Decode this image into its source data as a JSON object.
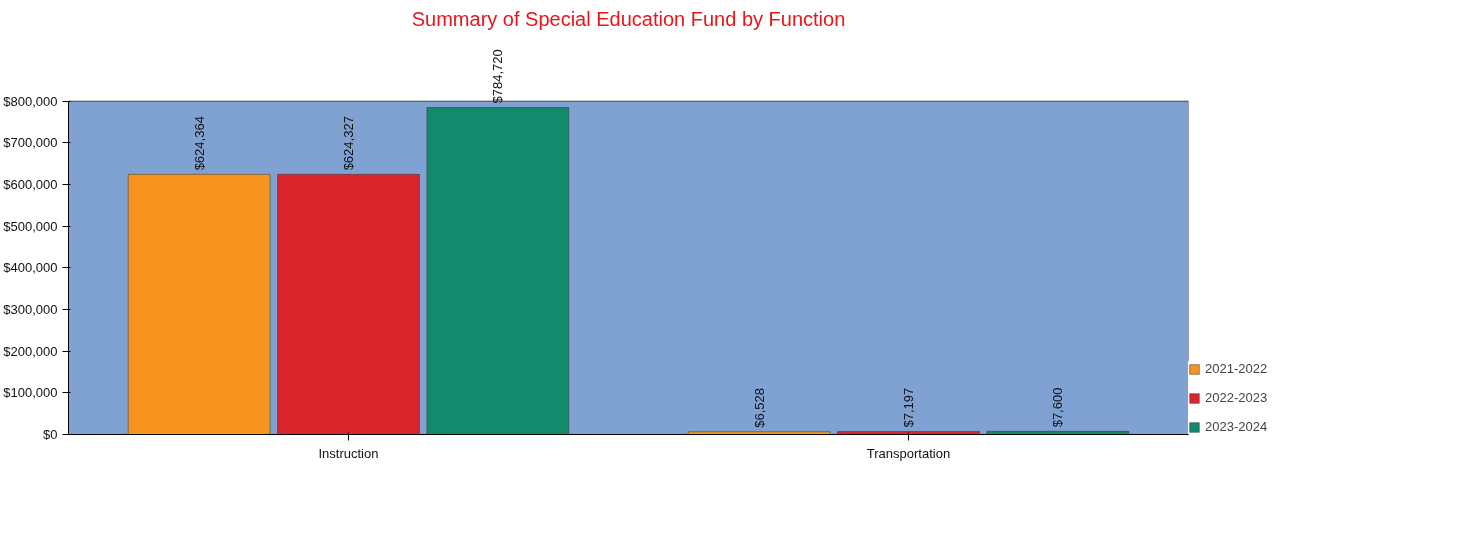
{
  "chart_data": {
    "type": "bar",
    "title": "Summary of Special Education Fund by Function",
    "categories": [
      "Instruction",
      "Transportation"
    ],
    "series": [
      {
        "name": "2021-2022",
        "color": "#f7941d",
        "values": [
          624364,
          6528
        ],
        "value_labels": [
          "$624,364",
          "$6,528"
        ]
      },
      {
        "name": "2022-2023",
        "color": "#d9262c",
        "values": [
          624327,
          7197
        ],
        "value_labels": [
          "$624,327",
          "$7,197"
        ]
      },
      {
        "name": "2023-2024",
        "color": "#138a6c",
        "values": [
          784720,
          7600
        ],
        "value_labels": [
          "$784,720",
          "$7,600"
        ]
      }
    ],
    "ylim": [
      0,
      800000
    ],
    "yticks": [
      {
        "value": 0,
        "label": "$0"
      },
      {
        "value": 100000,
        "label": "$100,000"
      },
      {
        "value": 200000,
        "label": "$200,000"
      },
      {
        "value": 300000,
        "label": "$300,000"
      },
      {
        "value": 400000,
        "label": "$400,000"
      },
      {
        "value": 500000,
        "label": "$500,000"
      },
      {
        "value": 600000,
        "label": "$600,000"
      },
      {
        "value": 700000,
        "label": "$700,000"
      },
      {
        "value": 800000,
        "label": "$800,000"
      }
    ],
    "grid": "y",
    "legend": "bottom right"
  }
}
